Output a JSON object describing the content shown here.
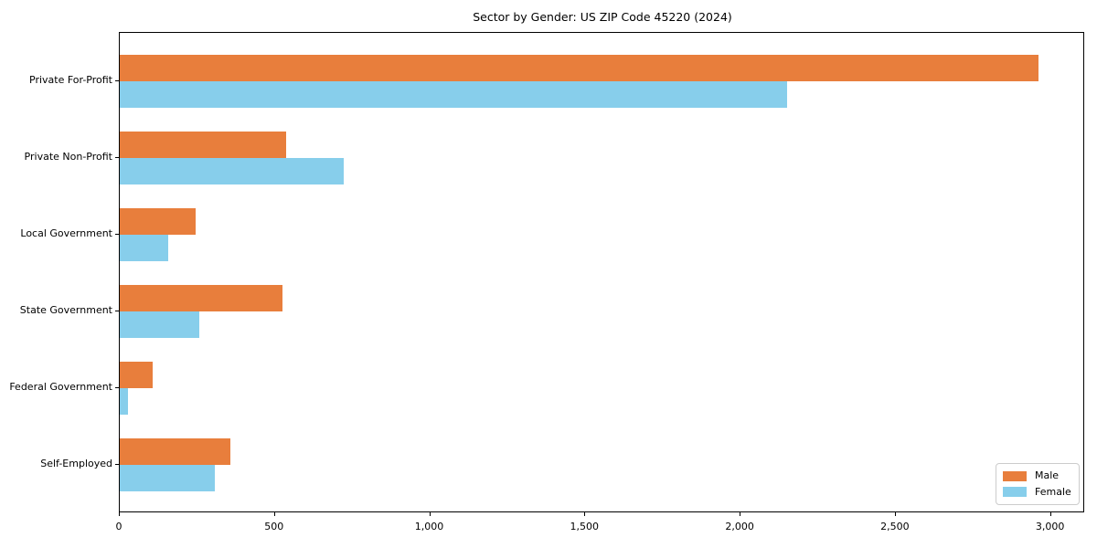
{
  "chart_data": {
    "type": "bar",
    "orientation": "horizontal",
    "title": "Sector by Gender: US ZIP Code 45220 (2024)",
    "categories": [
      "Private For-Profit",
      "Private Non-Profit",
      "Local Government",
      "State Government",
      "Federal Government",
      "Self-Employed"
    ],
    "series": [
      {
        "name": "Male",
        "color": "#E87E3C",
        "values": [
          2960,
          535,
          245,
          525,
          105,
          355
        ]
      },
      {
        "name": "Female",
        "color": "#87CEEB",
        "values": [
          2150,
          720,
          155,
          255,
          25,
          305
        ]
      }
    ],
    "xlabel": "",
    "ylabel": "",
    "xlim": [
      0,
      3110
    ],
    "xticks": [
      0,
      500,
      1000,
      1500,
      2000,
      2500,
      3000
    ],
    "xtick_labels": [
      "0",
      "500",
      "1,000",
      "1,500",
      "2,000",
      "2,500",
      "3,000"
    ],
    "grid": false,
    "legend": {
      "position": "lower right"
    }
  },
  "colors": {
    "background": "#ffffff",
    "spine": "#000000",
    "text": "#000000",
    "legend_border": "#cccccc",
    "male": "#E87E3C",
    "female": "#87CEEB"
  }
}
